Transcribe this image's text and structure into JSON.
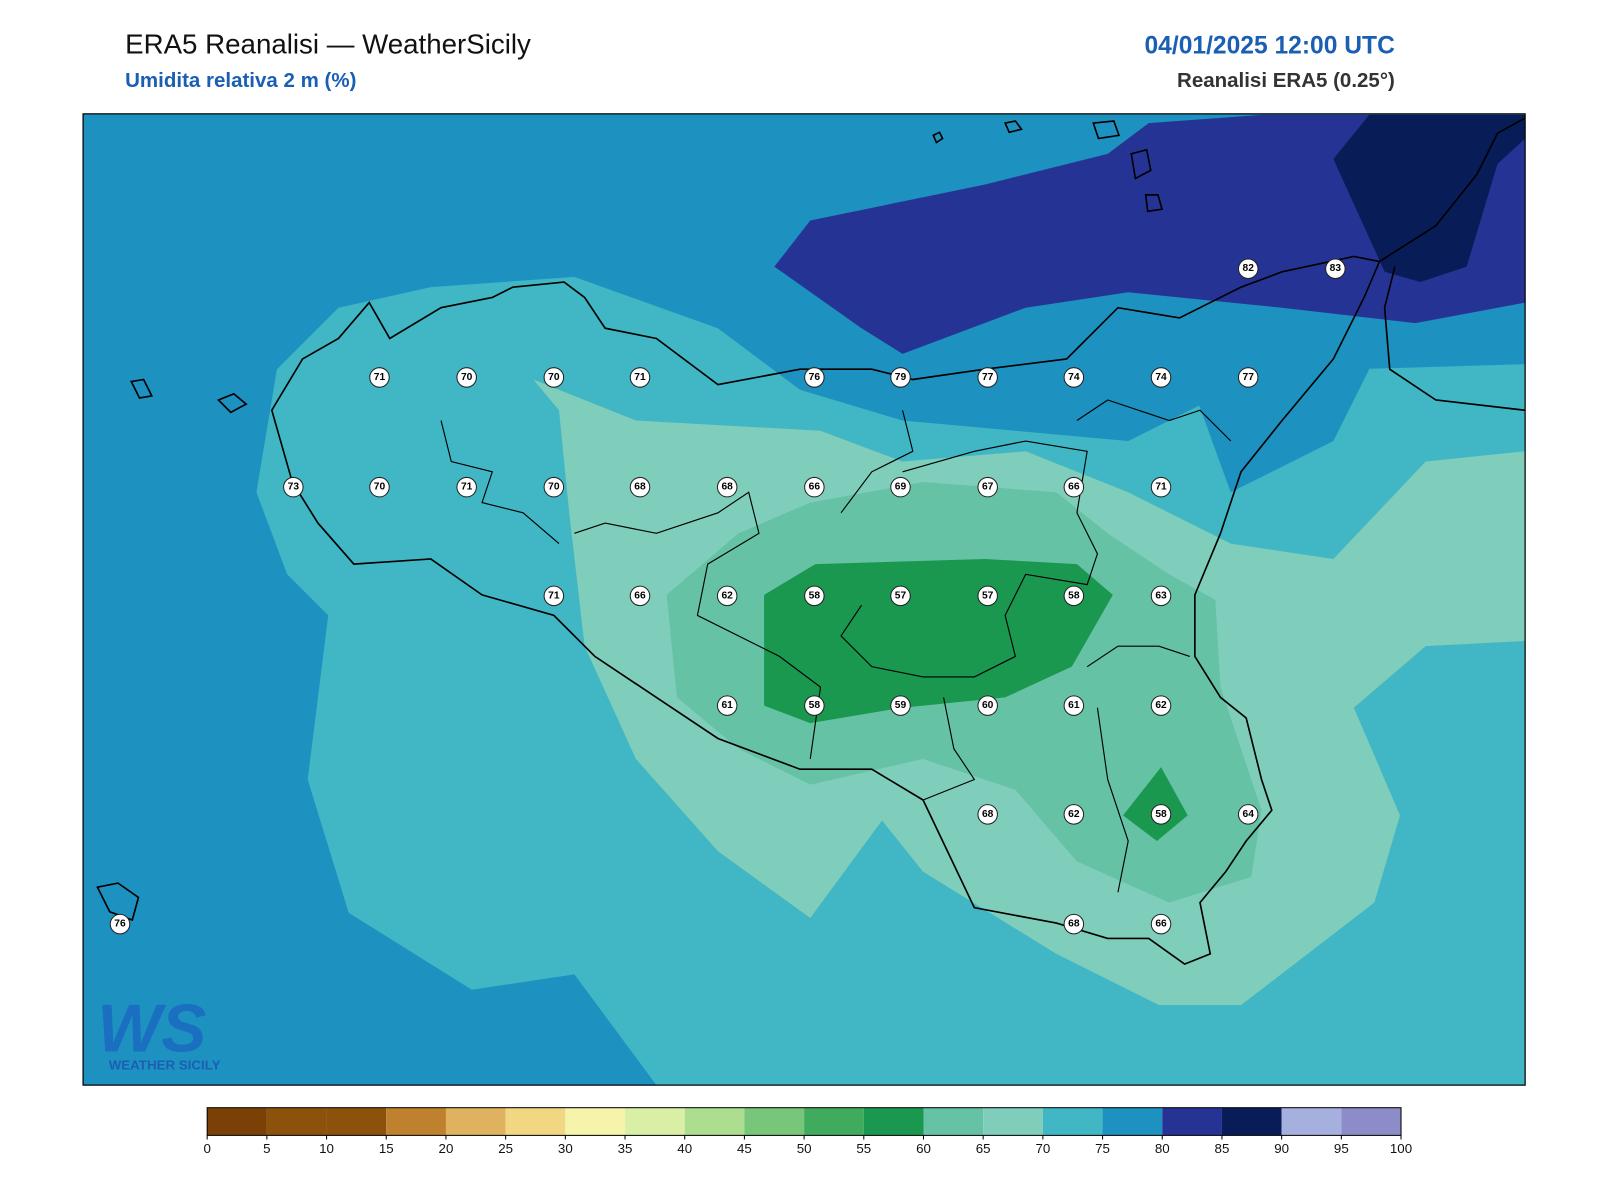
{
  "header": {
    "title": "ERA5 Reanalisi — WeatherSicily",
    "subtitle": "Umidita relativa 2 m (%)",
    "datetime": "04/01/2025 12:00 UTC",
    "source": "Reanalisi ERA5 (0.25°)"
  },
  "stations": [
    82,
    83,
    71,
    70,
    70,
    71,
    76,
    79,
    77,
    74,
    74,
    77,
    73,
    70,
    71,
    70,
    68,
    68,
    66,
    69,
    67,
    66,
    71,
    71,
    66,
    62,
    58,
    57,
    57,
    58,
    63,
    61,
    58,
    59,
    60,
    61,
    62,
    68,
    62,
    58,
    64,
    76,
    68,
    66
  ],
  "colorbar": {
    "ticks": [
      0,
      5,
      10,
      15,
      20,
      25,
      30,
      35,
      40,
      45,
      50,
      55,
      60,
      65,
      70,
      75,
      80,
      85,
      90,
      95,
      100
    ],
    "colors": [
      "#7a4006",
      "#8c510a",
      "#8c510a",
      "#bf812d",
      "#dfb25f",
      "#f2d783",
      "#f6f3aa",
      "#d9efa5",
      "#addd8e",
      "#78c679",
      "#41ab5d",
      "#1a9850",
      "#66c2a4",
      "#7fcdbb",
      "#41b6c4",
      "#1d91c0",
      "#253494",
      "#081d58",
      "#a6b0df",
      "#8c8cc8"
    ]
  },
  "logo": {
    "mark": "WS",
    "name": "WEATHER SICILY"
  }
}
